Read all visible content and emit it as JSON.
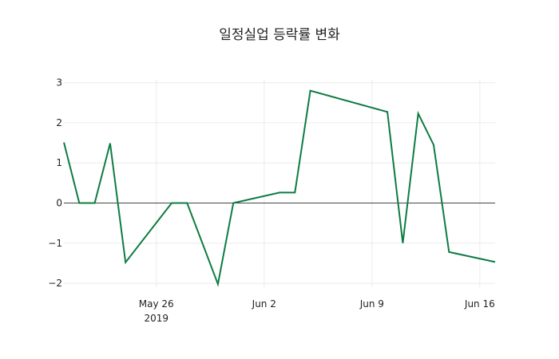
{
  "chart_data": {
    "type": "line",
    "title": "일정실업 등락률 변화",
    "xlabel": "",
    "ylabel": "",
    "ylim": [
      -2.2,
      3.1
    ],
    "grid": true,
    "legend": "none",
    "line_color": "#0e7c42",
    "x_ticks": [
      {
        "label": "May 26",
        "sub": "2019",
        "day": 6
      },
      {
        "label": "Jun 2",
        "sub": "",
        "day": 13
      },
      {
        "label": "Jun 9",
        "sub": "",
        "day": 20
      },
      {
        "label": "Jun 16",
        "sub": "",
        "day": 27
      }
    ],
    "y_ticks": [
      3,
      2,
      1,
      0,
      -1,
      -2
    ],
    "x": [
      "2019-05-20",
      "2019-05-21",
      "2019-05-22",
      "2019-05-23",
      "2019-05-24",
      "2019-05-27",
      "2019-05-28",
      "2019-05-30",
      "2019-05-31",
      "2019-06-03",
      "2019-06-04",
      "2019-06-05",
      "2019-06-10",
      "2019-06-11",
      "2019-06-12",
      "2019-06-13",
      "2019-06-14",
      "2019-06-17"
    ],
    "day_index": [
      0,
      1,
      2,
      3,
      4,
      7,
      8,
      10,
      11,
      14,
      15,
      16,
      21,
      22,
      23,
      24,
      25,
      28
    ],
    "values": [
      1.51,
      0,
      0,
      1.49,
      -1.48,
      0,
      0,
      -2.02,
      0,
      0.26,
      0.26,
      2.8,
      2.27,
      -1.0,
      2.23,
      1.45,
      -1.22,
      -1.47
    ]
  }
}
